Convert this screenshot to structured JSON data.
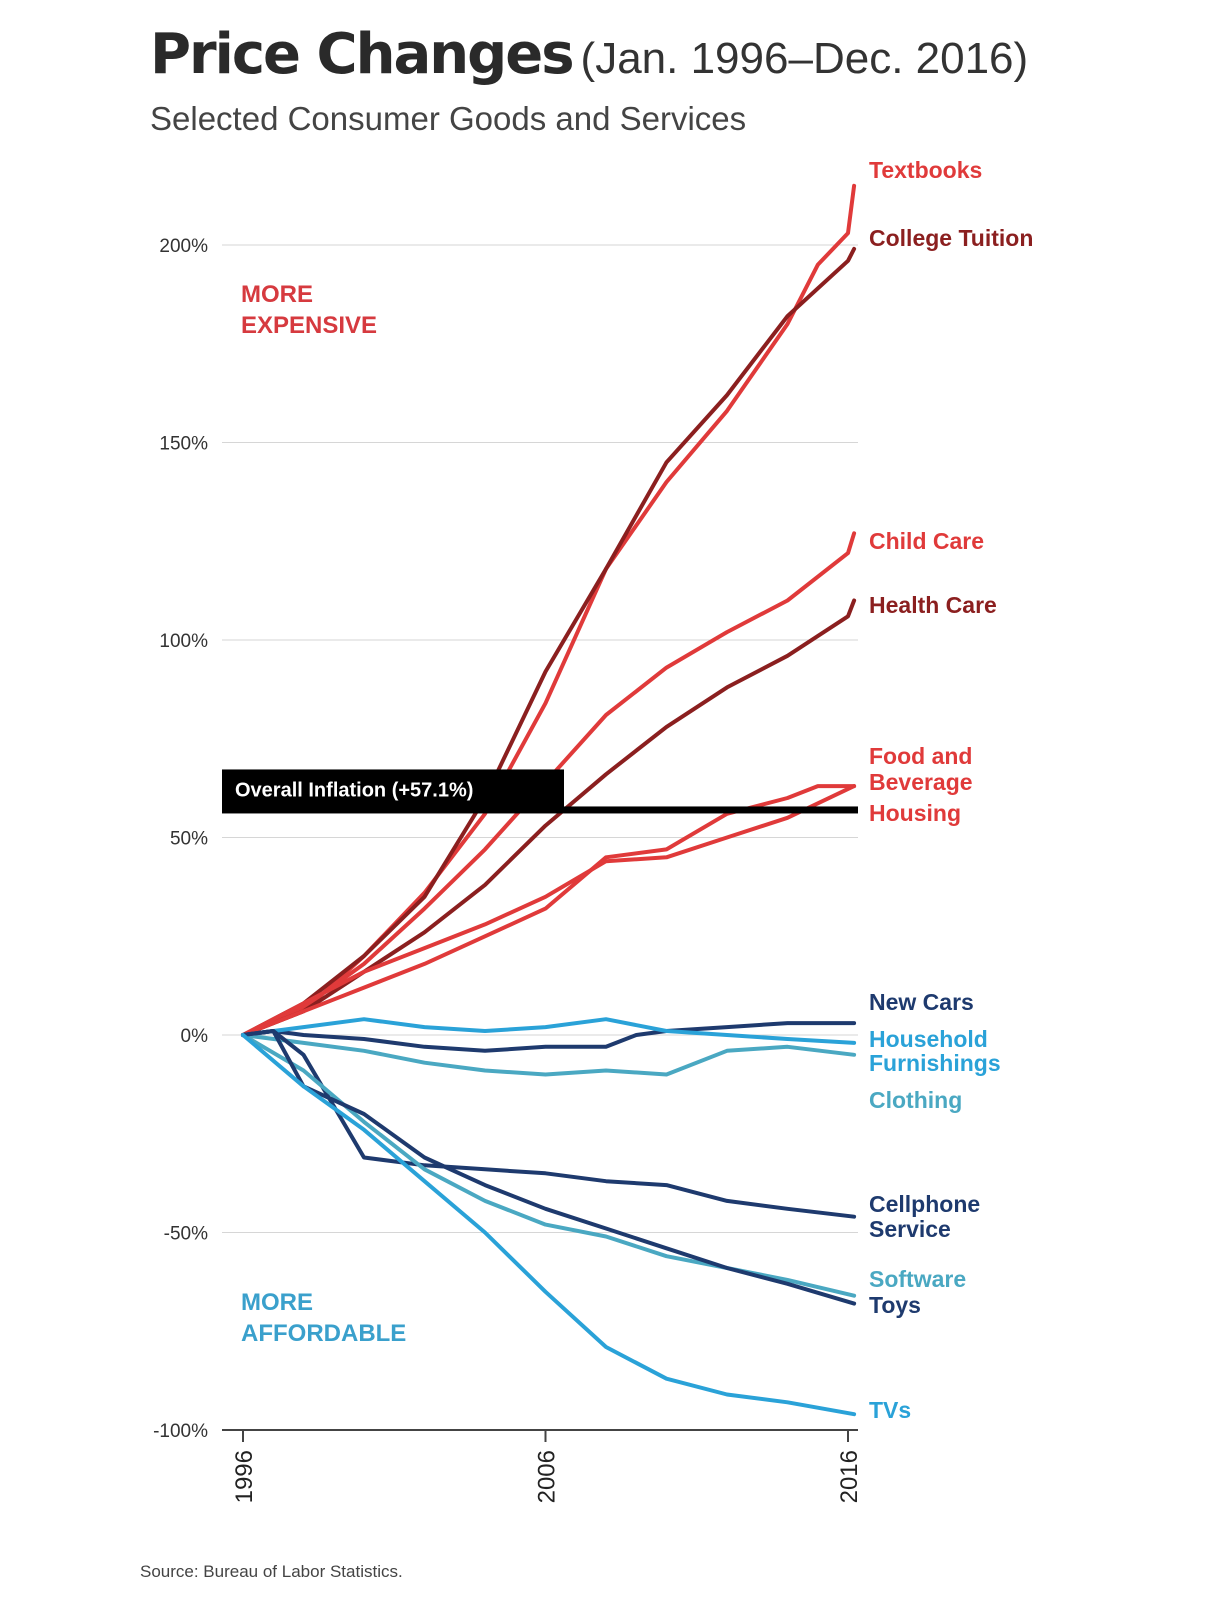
{
  "title": "Price Changes",
  "title_range": "(Jan. 1996–Dec. 2016)",
  "subtitle": "Selected Consumer Goods and Services",
  "source": "Source: Bureau of Labor Statistics.",
  "chart_data": {
    "type": "line",
    "x_ticks": [
      "1996",
      "2006",
      "2016"
    ],
    "x_range": [
      1996,
      2016.2
    ],
    "y_ticks": [
      "200%",
      "150%",
      "100%",
      "50%",
      "0%",
      "-50%",
      "-100%"
    ],
    "y_range": [
      -100,
      220
    ],
    "annotations": [
      {
        "text": "MORE",
        "color": "#d63a3f"
      },
      {
        "text": "EXPENSIVE",
        "color": "#d63a3f"
      },
      {
        "text": "MORE",
        "color": "#3aa0cc"
      },
      {
        "text": "AFFORDABLE",
        "color": "#3aa0cc"
      }
    ],
    "overall_inflation": {
      "label": "Overall Inflation (+57.1%)",
      "value": 57.1
    },
    "series": [
      {
        "name": "Textbooks",
        "color": "#e03a3a",
        "label_lines": [
          "Textbooks"
        ],
        "x": [
          1996,
          1998,
          2000,
          2002,
          2004,
          2006,
          2008,
          2010,
          2012,
          2014,
          2015,
          2016,
          2016.2
        ],
        "y": [
          0,
          6,
          20,
          36,
          56,
          84,
          118,
          140,
          158,
          180,
          195,
          203,
          215
        ]
      },
      {
        "name": "College Tuition",
        "color": "#8b1f1f",
        "label_lines": [
          "College Tuition"
        ],
        "x": [
          1996,
          1998,
          2000,
          2002,
          2004,
          2006,
          2008,
          2010,
          2012,
          2014,
          2016,
          2016.2
        ],
        "y": [
          0,
          8,
          20,
          35,
          60,
          92,
          118,
          145,
          162,
          182,
          196,
          199
        ]
      },
      {
        "name": "Child Care",
        "color": "#e03a3a",
        "label_lines": [
          "Child Care"
        ],
        "x": [
          1996,
          1998,
          2000,
          2002,
          2004,
          2006,
          2008,
          2010,
          2012,
          2014,
          2016,
          2016.2
        ],
        "y": [
          0,
          7,
          18,
          32,
          47,
          64,
          81,
          93,
          102,
          110,
          122,
          127
        ]
      },
      {
        "name": "Health Care",
        "color": "#8b1f1f",
        "label_lines": [
          "Health Care"
        ],
        "x": [
          1996,
          1998,
          2000,
          2002,
          2004,
          2006,
          2008,
          2010,
          2012,
          2014,
          2016,
          2016.2
        ],
        "y": [
          0,
          6,
          16,
          26,
          38,
          53,
          66,
          78,
          88,
          96,
          106,
          110
        ]
      },
      {
        "name": "Food and Beverage",
        "color": "#e03a3a",
        "label_lines": [
          "Food and",
          "Beverage"
        ],
        "x": [
          1996,
          1998,
          2000,
          2002,
          2004,
          2006,
          2008,
          2010,
          2012,
          2014,
          2015,
          2016.2
        ],
        "y": [
          0,
          6,
          12,
          18,
          25,
          32,
          45,
          47,
          56,
          60,
          63,
          63
        ]
      },
      {
        "name": "Housing",
        "color": "#e03a3a",
        "label_lines": [
          "Housing"
        ],
        "x": [
          1996,
          1998,
          2000,
          2002,
          2004,
          2006,
          2008,
          2010,
          2012,
          2014,
          2016.2
        ],
        "y": [
          0,
          8,
          16,
          22,
          28,
          35,
          44,
          45,
          50,
          55,
          63
        ]
      },
      {
        "name": "New Cars",
        "color": "#1e3a6e",
        "label_lines": [
          "New Cars"
        ],
        "x": [
          1996,
          1997,
          1998,
          2000,
          2002,
          2004,
          2006,
          2008,
          2009,
          2010,
          2012,
          2014,
          2016.2
        ],
        "y": [
          0,
          1,
          0,
          -1,
          -3,
          -4,
          -3,
          -3,
          0,
          1,
          2,
          3,
          3
        ]
      },
      {
        "name": "Household Furnishings",
        "color": "#2aa2d8",
        "label_lines": [
          "Household",
          "Furnishings"
        ],
        "x": [
          1996,
          1998,
          2000,
          2002,
          2004,
          2006,
          2008,
          2010,
          2012,
          2014,
          2016.2
        ],
        "y": [
          0,
          2,
          4,
          2,
          1,
          2,
          4,
          1,
          0,
          -1,
          -2
        ]
      },
      {
        "name": "Clothing",
        "color": "#4aa8c2",
        "label_lines": [
          "Clothing"
        ],
        "x": [
          1996,
          1998,
          2000,
          2002,
          2004,
          2006,
          2008,
          2010,
          2012,
          2014,
          2016.2
        ],
        "y": [
          0,
          -2,
          -4,
          -7,
          -9,
          -10,
          -9,
          -10,
          -4,
          -3,
          -5
        ]
      },
      {
        "name": "Cellphone Service",
        "color": "#1e3a6e",
        "label_lines": [
          "Cellphone",
          "Service"
        ],
        "x": [
          1996,
          1997,
          1998,
          1999,
          2000,
          2002,
          2004,
          2006,
          2008,
          2010,
          2012,
          2014,
          2016.2
        ],
        "y": [
          0,
          1,
          -5,
          -18,
          -31,
          -33,
          -34,
          -35,
          -37,
          -38,
          -42,
          -44,
          -46
        ]
      },
      {
        "name": "Software",
        "color": "#4aa8c2",
        "label_lines": [
          "Software"
        ],
        "x": [
          1996,
          1998,
          2000,
          2002,
          2004,
          2006,
          2008,
          2010,
          2012,
          2014,
          2016.2
        ],
        "y": [
          0,
          -9,
          -22,
          -34,
          -42,
          -48,
          -51,
          -56,
          -59,
          -62,
          -66
        ]
      },
      {
        "name": "Toys",
        "color": "#1e3a6e",
        "label_lines": [
          "Toys"
        ],
        "x": [
          1996,
          1997,
          1998,
          2000,
          2002,
          2004,
          2006,
          2008,
          2010,
          2012,
          2014,
          2016.2
        ],
        "y": [
          0,
          1,
          -13,
          -20,
          -31,
          -38,
          -44,
          -49,
          -54,
          -59,
          -63,
          -68
        ]
      },
      {
        "name": "TVs",
        "color": "#2aa2d8",
        "label_lines": [
          "TVs"
        ],
        "x": [
          1996,
          1998,
          2000,
          2002,
          2004,
          2006,
          2008,
          2010,
          2012,
          2014,
          2016.2
        ],
        "y": [
          0,
          -13,
          -24,
          -37,
          -50,
          -65,
          -79,
          -87,
          -91,
          -93,
          -96
        ]
      }
    ]
  }
}
